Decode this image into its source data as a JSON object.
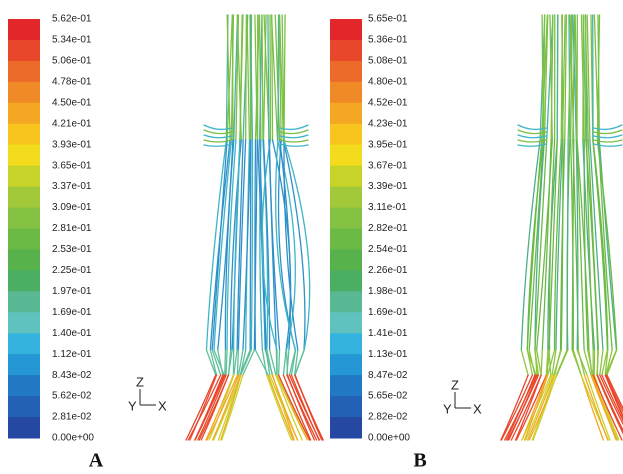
{
  "panels": [
    {
      "label": "A",
      "colorbar": [
        "5.62e-01",
        "5.34e-01",
        "5.06e-01",
        "4.78e-01",
        "4.50e-01",
        "4.21e-01",
        "3.93e-01",
        "3.65e-01",
        "3.37e-01",
        "3.09e-01",
        "2.81e-01",
        "2.53e-01",
        "2.25e-01",
        "1.97e-01",
        "1.69e-01",
        "1.40e-01",
        "1.12e-01",
        "8.43e-02",
        "5.62e-02",
        "2.81e-02",
        "0.00e+00"
      ],
      "axes": {
        "z": "Z",
        "y": "Y",
        "x": "X"
      }
    },
    {
      "label": "B",
      "colorbar": [
        "5.65e-01",
        "5.36e-01",
        "5.08e-01",
        "4.80e-01",
        "4.52e-01",
        "4.23e-01",
        "3.95e-01",
        "3.67e-01",
        "3.39e-01",
        "3.11e-01",
        "2.82e-01",
        "2.54e-01",
        "2.26e-01",
        "1.98e-01",
        "1.69e-01",
        "1.41e-01",
        "1.13e-01",
        "8.47e-02",
        "5.65e-02",
        "2.82e-02",
        "0.00e+00"
      ],
      "axes": {
        "z": "Z",
        "y": "Y",
        "x": "X"
      }
    }
  ]
}
